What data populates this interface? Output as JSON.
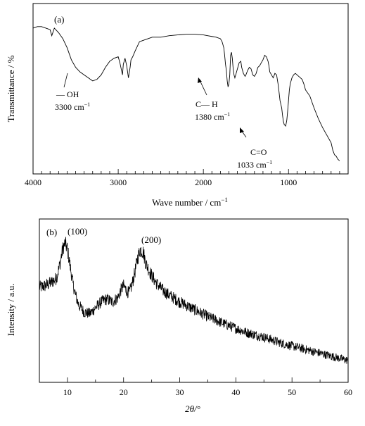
{
  "chart_data": [
    {
      "type": "line",
      "panel_label": "(a)",
      "xlabel": "Wave number / cm",
      "xlabel_sup": "−1",
      "ylabel": "Transmittance / %",
      "xlim": [
        4000,
        300
      ],
      "ylim": [
        0,
        100
      ],
      "x_reversed": true,
      "x_ticks": [
        4000,
        3000,
        2000,
        1000
      ],
      "y_ticks_labeled": false,
      "grid": false,
      "annotations": [
        {
          "line1": "— OH",
          "line2": "3300 cm",
          "sup": "−1",
          "x": 3300,
          "y": 58
        },
        {
          "line1": "C— H",
          "line2": "1380 cm",
          "sup": "−1",
          "x": 1380,
          "y": 60
        },
        {
          "line1": "C=O",
          "line2": "1033 cm",
          "sup": "−1",
          "x": 1033,
          "y": 28
        }
      ],
      "series": [
        {
          "x": [
            4000,
            3950,
            3900,
            3850,
            3800,
            3780,
            3750,
            3700,
            3650,
            3600,
            3550,
            3500,
            3450,
            3400,
            3350,
            3300,
            3250,
            3200,
            3150,
            3100,
            3050,
            3000,
            2980,
            2950,
            2940,
            2920,
            2900,
            2880,
            2860,
            2850,
            2830,
            2800,
            2750,
            2700,
            2650,
            2600,
            2500,
            2400,
            2300,
            2200,
            2100,
            2000,
            1950,
            1900,
            1850,
            1800,
            1780,
            1760,
            1750,
            1740,
            1730,
            1720,
            1710,
            1700,
            1690,
            1680,
            1670,
            1660,
            1650,
            1640,
            1630,
            1620,
            1600,
            1580,
            1560,
            1550,
            1530,
            1510,
            1500,
            1480,
            1460,
            1440,
            1430,
            1420,
            1400,
            1380,
            1370,
            1360,
            1340,
            1320,
            1300,
            1280,
            1260,
            1240,
            1230,
            1220,
            1200,
            1180,
            1160,
            1140,
            1120,
            1100,
            1080,
            1070,
            1060,
            1050,
            1040,
            1033,
            1020,
            1010,
            1000,
            990,
            980,
            960,
            940,
            920,
            900,
            880,
            860,
            840,
            820,
            800,
            750,
            700,
            650,
            600,
            550,
            500,
            480,
            460,
            440,
            420,
            400
          ],
          "values": [
            93,
            94,
            94,
            93,
            92,
            88,
            93,
            90,
            86,
            80,
            72,
            67,
            64,
            62,
            60,
            58,
            59,
            62,
            67,
            71,
            73,
            74,
            70,
            62,
            69,
            73,
            68,
            60,
            67,
            72,
            74,
            78,
            84,
            85,
            86,
            87,
            87,
            88,
            88.5,
            89,
            89,
            88.5,
            88,
            87.5,
            87,
            86,
            84,
            80,
            75,
            69,
            65,
            58,
            54,
            56,
            62,
            75,
            77,
            73,
            66,
            62,
            60,
            62,
            66,
            70,
            71,
            67,
            63,
            61,
            62,
            65,
            67,
            66,
            64,
            62,
            61,
            63,
            65,
            67,
            68,
            70,
            72,
            75,
            74,
            71,
            68,
            64,
            62,
            60,
            63,
            62,
            55,
            45,
            40,
            35,
            31,
            29,
            28.5,
            28,
            32,
            38,
            45,
            52,
            56,
            60,
            62,
            63,
            62,
            61,
            60,
            59,
            56,
            52,
            48,
            40,
            33,
            27,
            22,
            17,
            12,
            9,
            8,
            6,
            5
          ]
        }
      ]
    },
    {
      "type": "line",
      "panel_label": "(b)",
      "xlabel": "2θ/°",
      "ylabel": "Intensity / a.u.",
      "xlim": [
        5,
        60
      ],
      "ylim": [
        0,
        100
      ],
      "x_ticks": [
        10,
        20,
        30,
        40,
        50,
        60
      ],
      "y_ticks_labeled": false,
      "grid": false,
      "annotations": [
        {
          "text": "(100)",
          "x": 9.6,
          "y": 95
        },
        {
          "text": "(200)",
          "x": 23,
          "y": 90
        }
      ],
      "series": [
        {
          "noise": 4,
          "x": [
            5,
            6,
            7,
            8,
            8.5,
            9,
            9.3,
            9.6,
            10,
            10.5,
            11,
            11.5,
            12,
            13,
            14,
            15,
            16,
            17,
            18,
            19,
            19.5,
            20,
            20.5,
            21,
            21.5,
            22,
            22.5,
            23,
            23.5,
            24,
            25,
            26,
            27,
            28,
            30,
            32,
            35,
            38,
            40,
            42,
            45,
            48,
            50,
            52,
            55,
            58,
            60
          ],
          "values": [
            62,
            63,
            65,
            68,
            75,
            85,
            90,
            92,
            88,
            76,
            64,
            56,
            50,
            45,
            44,
            48,
            52,
            54,
            52,
            55,
            60,
            63,
            60,
            58,
            64,
            72,
            82,
            88,
            86,
            78,
            70,
            64,
            60,
            57,
            52,
            48,
            42,
            37,
            34,
            31,
            28,
            24,
            22,
            20,
            17,
            14,
            12
          ]
        }
      ]
    }
  ]
}
